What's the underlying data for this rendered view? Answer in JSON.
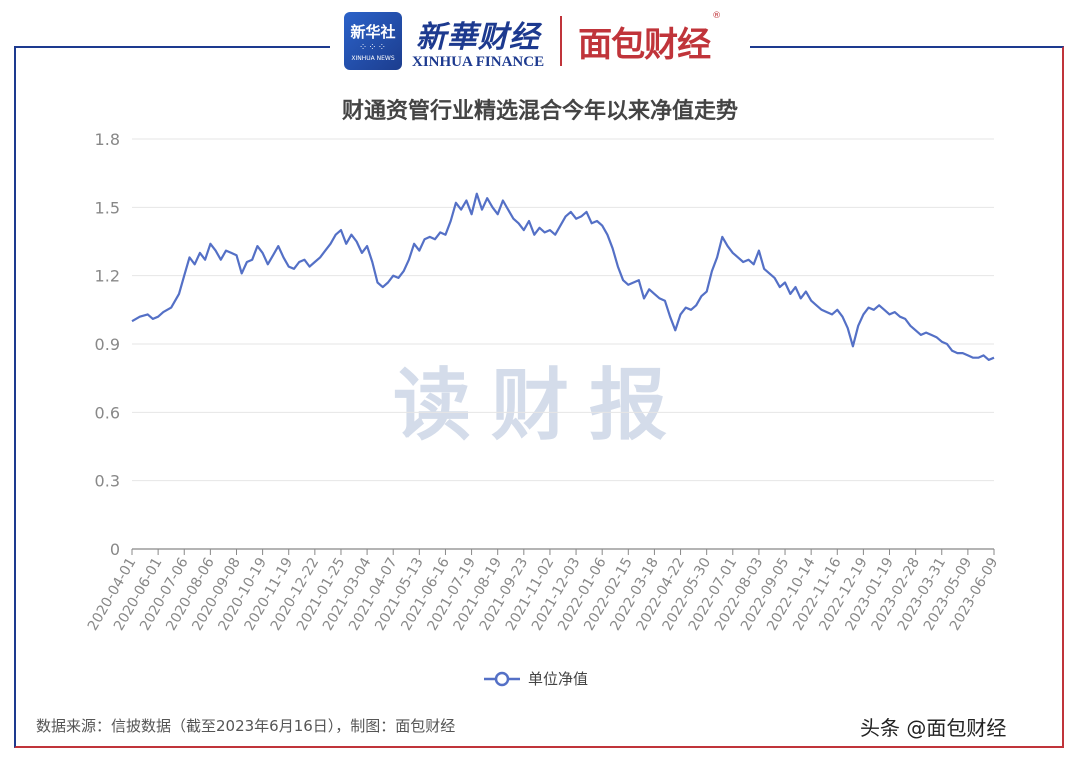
{
  "header": {
    "xinhua_badge": "新华社",
    "xinhua_badge_en": "XINHUA NEWS",
    "xinhua_cn": "新華财经",
    "xinhua_en": "XINHUA FINANCE",
    "mianbao_logo": "面包财经",
    "registered_mark": "®"
  },
  "watermark": "读财报",
  "source_note": "数据来源：信披数据（截至2023年6月16日），制图：面包财经",
  "platform_tag": "头条 @面包财经",
  "colors": {
    "line": "#5470c6",
    "grid": "#e6e6e6",
    "axis_text": "#888888",
    "watermark": "#d4dcea"
  },
  "chart_data": {
    "type": "line",
    "title": "财通资管行业精选混合今年以来净值走势",
    "ylim": [
      0,
      1.8
    ],
    "yticks": [
      "0",
      "0.3",
      "0.6",
      "0.9",
      "1.2",
      "1.5",
      "1.8"
    ],
    "grid": true,
    "legend_position": "bottom-center",
    "categories": [
      "2020-04-01",
      "2020-06-01",
      "2020-07-06",
      "2020-08-06",
      "2020-09-08",
      "2020-10-19",
      "2020-11-19",
      "2020-12-22",
      "2021-01-25",
      "2021-03-04",
      "2021-04-07",
      "2021-05-13",
      "2021-06-16",
      "2021-07-19",
      "2021-08-19",
      "2021-09-23",
      "2021-11-02",
      "2021-12-03",
      "2022-01-06",
      "2022-02-15",
      "2022-03-18",
      "2022-04-22",
      "2022-05-30",
      "2022-07-01",
      "2022-08-03",
      "2022-09-05",
      "2022-10-14",
      "2022-11-16",
      "2022-12-19",
      "2023-01-19",
      "2023-02-28",
      "2023-03-31",
      "2023-05-09",
      "2023-06-09"
    ],
    "series": [
      {
        "name": "单位净值",
        "points": [
          [
            0,
            1.0
          ],
          [
            0.3,
            1.02
          ],
          [
            0.6,
            1.03
          ],
          [
            0.8,
            1.01
          ],
          [
            1.0,
            1.02
          ],
          [
            1.2,
            1.04
          ],
          [
            1.5,
            1.06
          ],
          [
            1.8,
            1.12
          ],
          [
            2.0,
            1.2
          ],
          [
            2.2,
            1.28
          ],
          [
            2.4,
            1.25
          ],
          [
            2.6,
            1.3
          ],
          [
            2.8,
            1.27
          ],
          [
            3.0,
            1.34
          ],
          [
            3.2,
            1.31
          ],
          [
            3.4,
            1.27
          ],
          [
            3.6,
            1.31
          ],
          [
            3.8,
            1.3
          ],
          [
            4.0,
            1.29
          ],
          [
            4.2,
            1.21
          ],
          [
            4.4,
            1.26
          ],
          [
            4.6,
            1.27
          ],
          [
            4.8,
            1.33
          ],
          [
            5.0,
            1.3
          ],
          [
            5.2,
            1.25
          ],
          [
            5.4,
            1.29
          ],
          [
            5.6,
            1.33
          ],
          [
            5.8,
            1.28
          ],
          [
            6.0,
            1.24
          ],
          [
            6.2,
            1.23
          ],
          [
            6.4,
            1.26
          ],
          [
            6.6,
            1.27
          ],
          [
            6.8,
            1.24
          ],
          [
            7.0,
            1.26
          ],
          [
            7.2,
            1.28
          ],
          [
            7.4,
            1.31
          ],
          [
            7.6,
            1.34
          ],
          [
            7.8,
            1.38
          ],
          [
            8.0,
            1.4
          ],
          [
            8.2,
            1.34
          ],
          [
            8.4,
            1.38
          ],
          [
            8.6,
            1.35
          ],
          [
            8.8,
            1.3
          ],
          [
            9.0,
            1.33
          ],
          [
            9.2,
            1.26
          ],
          [
            9.4,
            1.17
          ],
          [
            9.6,
            1.15
          ],
          [
            9.8,
            1.17
          ],
          [
            10.0,
            1.2
          ],
          [
            10.2,
            1.19
          ],
          [
            10.4,
            1.22
          ],
          [
            10.6,
            1.27
          ],
          [
            10.8,
            1.34
          ],
          [
            11.0,
            1.31
          ],
          [
            11.2,
            1.36
          ],
          [
            11.4,
            1.37
          ],
          [
            11.6,
            1.36
          ],
          [
            11.8,
            1.39
          ],
          [
            12.0,
            1.38
          ],
          [
            12.2,
            1.44
          ],
          [
            12.4,
            1.52
          ],
          [
            12.6,
            1.49
          ],
          [
            12.8,
            1.53
          ],
          [
            13.0,
            1.47
          ],
          [
            13.2,
            1.56
          ],
          [
            13.4,
            1.49
          ],
          [
            13.6,
            1.54
          ],
          [
            13.8,
            1.5
          ],
          [
            14.0,
            1.47
          ],
          [
            14.2,
            1.53
          ],
          [
            14.4,
            1.49
          ],
          [
            14.6,
            1.45
          ],
          [
            14.8,
            1.43
          ],
          [
            15.0,
            1.4
          ],
          [
            15.2,
            1.44
          ],
          [
            15.4,
            1.38
          ],
          [
            15.6,
            1.41
          ],
          [
            15.8,
            1.39
          ],
          [
            16.0,
            1.4
          ],
          [
            16.2,
            1.38
          ],
          [
            16.4,
            1.42
          ],
          [
            16.6,
            1.46
          ],
          [
            16.8,
            1.48
          ],
          [
            17.0,
            1.45
          ],
          [
            17.2,
            1.46
          ],
          [
            17.4,
            1.48
          ],
          [
            17.6,
            1.43
          ],
          [
            17.8,
            1.44
          ],
          [
            18.0,
            1.42
          ],
          [
            18.2,
            1.38
          ],
          [
            18.4,
            1.32
          ],
          [
            18.6,
            1.24
          ],
          [
            18.8,
            1.18
          ],
          [
            19.0,
            1.16
          ],
          [
            19.2,
            1.17
          ],
          [
            19.4,
            1.18
          ],
          [
            19.6,
            1.1
          ],
          [
            19.8,
            1.14
          ],
          [
            20.0,
            1.12
          ],
          [
            20.2,
            1.1
          ],
          [
            20.4,
            1.09
          ],
          [
            20.6,
            1.02
          ],
          [
            20.8,
            0.96
          ],
          [
            21.0,
            1.03
          ],
          [
            21.2,
            1.06
          ],
          [
            21.4,
            1.05
          ],
          [
            21.6,
            1.07
          ],
          [
            21.8,
            1.11
          ],
          [
            22.0,
            1.13
          ],
          [
            22.2,
            1.22
          ],
          [
            22.4,
            1.28
          ],
          [
            22.6,
            1.37
          ],
          [
            22.8,
            1.33
          ],
          [
            23.0,
            1.3
          ],
          [
            23.2,
            1.28
          ],
          [
            23.4,
            1.26
          ],
          [
            23.6,
            1.27
          ],
          [
            23.8,
            1.25
          ],
          [
            24.0,
            1.31
          ],
          [
            24.2,
            1.23
          ],
          [
            24.4,
            1.21
          ],
          [
            24.6,
            1.19
          ],
          [
            24.8,
            1.15
          ],
          [
            25.0,
            1.17
          ],
          [
            25.2,
            1.12
          ],
          [
            25.4,
            1.15
          ],
          [
            25.6,
            1.1
          ],
          [
            25.8,
            1.13
          ],
          [
            26.0,
            1.09
          ],
          [
            26.2,
            1.07
          ],
          [
            26.4,
            1.05
          ],
          [
            26.6,
            1.04
          ],
          [
            26.8,
            1.03
          ],
          [
            27.0,
            1.05
          ],
          [
            27.2,
            1.02
          ],
          [
            27.4,
            0.97
          ],
          [
            27.6,
            0.89
          ],
          [
            27.8,
            0.98
          ],
          [
            28.0,
            1.03
          ],
          [
            28.2,
            1.06
          ],
          [
            28.4,
            1.05
          ],
          [
            28.6,
            1.07
          ],
          [
            28.8,
            1.05
          ],
          [
            29.0,
            1.03
          ],
          [
            29.2,
            1.04
          ],
          [
            29.4,
            1.02
          ],
          [
            29.6,
            1.01
          ],
          [
            29.8,
            0.98
          ],
          [
            30.0,
            0.96
          ],
          [
            30.2,
            0.94
          ],
          [
            30.4,
            0.95
          ],
          [
            30.6,
            0.94
          ],
          [
            30.8,
            0.93
          ],
          [
            31.0,
            0.91
          ],
          [
            31.2,
            0.9
          ],
          [
            31.4,
            0.87
          ],
          [
            31.6,
            0.86
          ],
          [
            31.8,
            0.86
          ],
          [
            32.0,
            0.85
          ],
          [
            32.2,
            0.84
          ],
          [
            32.4,
            0.84
          ],
          [
            32.6,
            0.85
          ],
          [
            32.8,
            0.83
          ],
          [
            33.0,
            0.84
          ]
        ]
      }
    ]
  }
}
